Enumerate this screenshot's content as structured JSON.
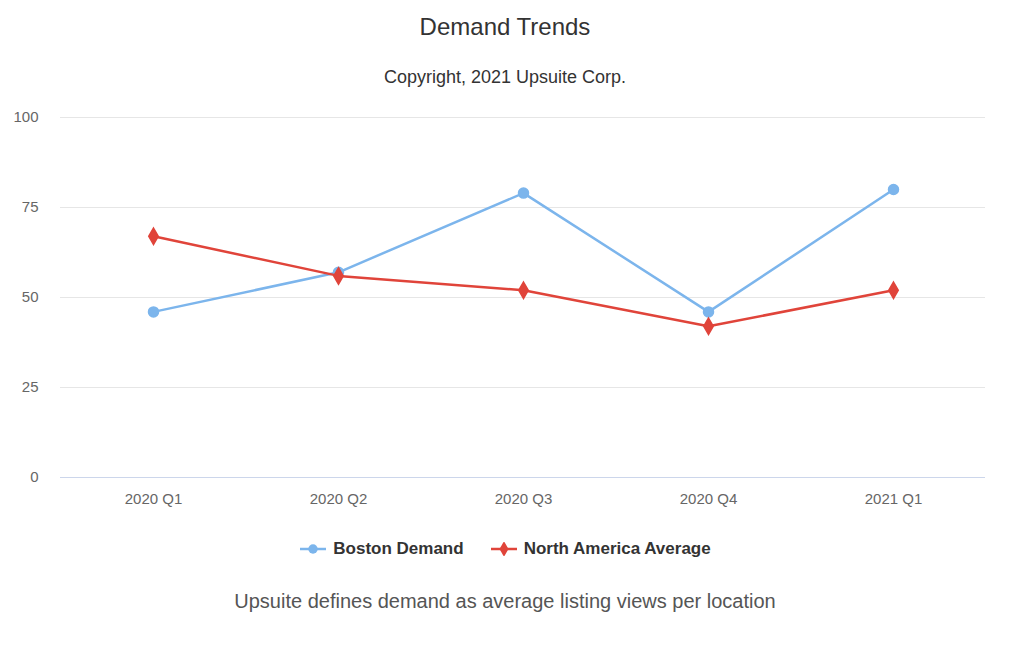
{
  "chart_data": {
    "type": "line",
    "title": "Demand Trends",
    "subtitle": "Copyright, 2021 Upsuite Corp.",
    "caption": "Upsuite defines demand as average listing views per location",
    "categories": [
      "2020 Q1",
      "2020 Q2",
      "2020 Q3",
      "2020 Q4",
      "2021 Q1"
    ],
    "series": [
      {
        "name": "Boston Demand",
        "color": "#7cb5ec",
        "marker": "circle",
        "values": [
          46,
          57,
          79,
          46,
          80
        ]
      },
      {
        "name": "North America Average",
        "color": "#e0443a",
        "marker": "diamond",
        "values": [
          67,
          56,
          52,
          42,
          52
        ]
      }
    ],
    "ylim": [
      0,
      100
    ],
    "yticks": [
      0,
      25,
      50,
      75,
      100
    ],
    "grid": true,
    "legend": "bottom"
  }
}
